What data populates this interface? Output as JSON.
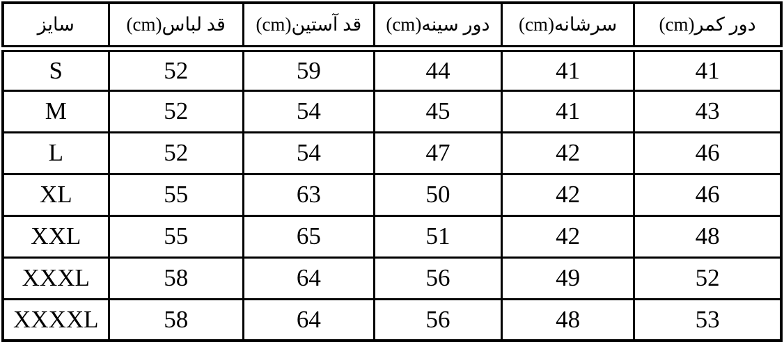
{
  "table": {
    "title_semantic": "clothing-size-chart",
    "columns": [
      {
        "key": "size",
        "label": "سایز"
      },
      {
        "key": "garment-length",
        "label": "قد لباس(cm)"
      },
      {
        "key": "sleeve-length",
        "label": "قد آستین(cm)"
      },
      {
        "key": "chest",
        "label": "دور سینه(cm)"
      },
      {
        "key": "shoulder",
        "label": "سرشانه(cm)"
      },
      {
        "key": "waist",
        "label": "دور کمر(cm)"
      }
    ],
    "rows": [
      [
        "S",
        "52",
        "59",
        "44",
        "41",
        "41"
      ],
      [
        "M",
        "52",
        "54",
        "45",
        "41",
        "43"
      ],
      [
        "L",
        "52",
        "54",
        "47",
        "42",
        "46"
      ],
      [
        "XL",
        "55",
        "63",
        "50",
        "42",
        "46"
      ],
      [
        "XXL",
        "55",
        "65",
        "51",
        "42",
        "48"
      ],
      [
        "XXXL",
        "58",
        "64",
        "56",
        "49",
        "52"
      ],
      [
        "XXXXL",
        "58",
        "64",
        "56",
        "48",
        "53"
      ]
    ]
  },
  "colors": {
    "border": "#000000",
    "background": "#ffffff",
    "text": "#000000"
  }
}
